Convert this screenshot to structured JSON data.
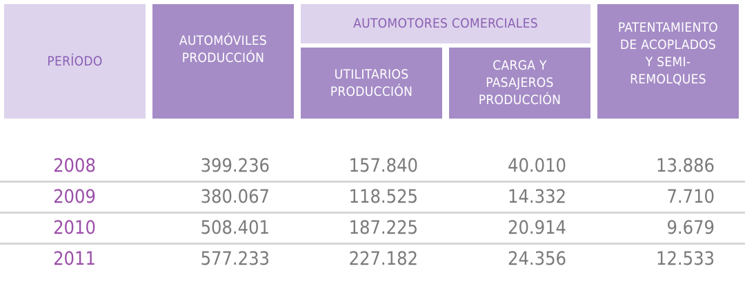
{
  "header": {
    "periodo": "PERÍODO",
    "automoviles": "AUTOMÓVILES\nPRODUCCIÓN",
    "comerciales": "AUTOMOTORES COMERCIALES",
    "utilitarios": "UTILITARIOS\nPRODUCCIÓN",
    "carga": "CARGA Y\nPASAJEROS\nPRODUCCIÓN",
    "patentamiento": "PATENTAMIENTO\nDE ACOPLADOS\nY SEMI-\nREMOLQUES"
  },
  "rows": [
    {
      "year": "2008",
      "automoviles": "399.236",
      "utilitarios": "157.840",
      "carga": "40.010",
      "patentamiento": "13.886"
    },
    {
      "year": "2009",
      "automoviles": "380.067",
      "utilitarios": "118.525",
      "carga": "14.332",
      "patentamiento": "7.710"
    },
    {
      "year": "2010",
      "automoviles": "508.401",
      "utilitarios": "187.225",
      "carga": "20.914",
      "patentamiento": "9.679"
    },
    {
      "year": "2011",
      "automoviles": "577.233",
      "utilitarios": "227.182",
      "carga": "24.356",
      "patentamiento": "12.533"
    }
  ]
}
